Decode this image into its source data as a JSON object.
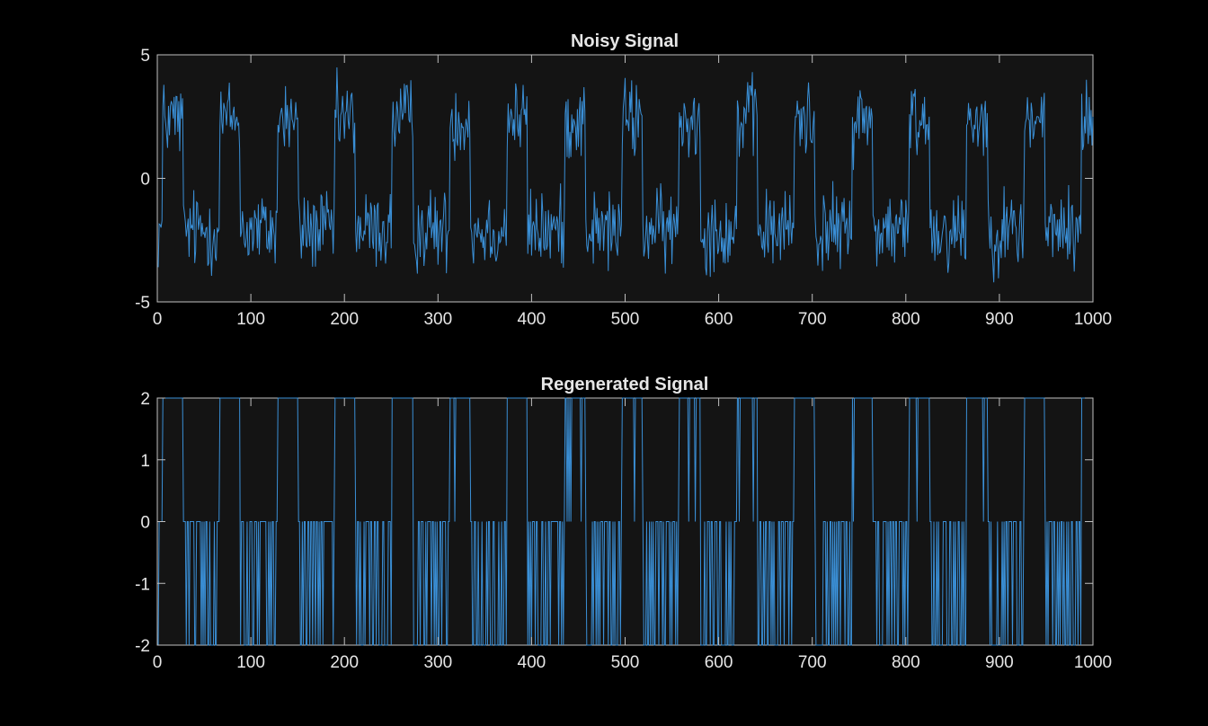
{
  "figure": {
    "background": "#000000",
    "axes_background": "#141414",
    "axis_color": "#bfbfbf",
    "line_color": "#3a8fd6"
  },
  "chart_data": [
    {
      "type": "line",
      "title": "Noisy Signal",
      "xlabel": "",
      "ylabel": "",
      "xlim": [
        0,
        1000
      ],
      "ylim": [
        -5,
        5
      ],
      "xticks": [
        "0",
        "100",
        "200",
        "300",
        "400",
        "500",
        "600",
        "700",
        "800",
        "900",
        "1000"
      ],
      "yticks": [
        "5",
        "0",
        "-5"
      ],
      "grid": false,
      "series": [
        {
          "period": 61.4,
          "high_level": 2.4,
          "low_level": -2.1,
          "duty": 0.36,
          "noise_amplitude": 1.3,
          "samples": 1000
        }
      ]
    },
    {
      "type": "line",
      "title": "Regenerated Signal",
      "xlabel": "",
      "ylabel": "",
      "xlim": [
        0,
        1000
      ],
      "ylim": [
        -2,
        2
      ],
      "xticks": [
        "0",
        "100",
        "200",
        "300",
        "400",
        "500",
        "600",
        "700",
        "800",
        "900",
        "1000"
      ],
      "yticks": [
        "2",
        "1",
        "0",
        "-1",
        "-2"
      ],
      "grid": false,
      "series": [
        {
          "levels": [
            2,
            0,
            -2
          ],
          "samples": 1000
        }
      ]
    }
  ]
}
